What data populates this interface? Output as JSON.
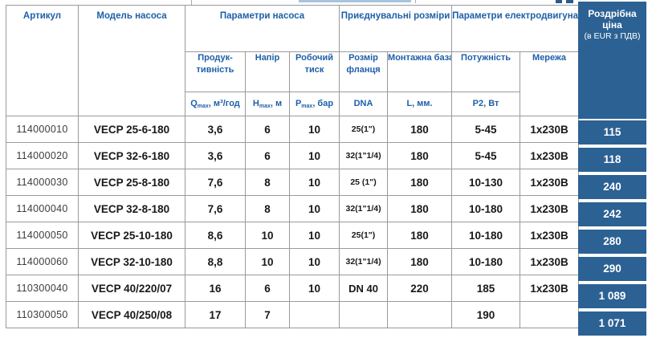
{
  "colors": {
    "header_text": "#1e5fa9",
    "price_bg": "#2c6193",
    "border": "#9a9a9a",
    "strip": "#a8c4dd"
  },
  "header": {
    "artikul": "Артикул",
    "model": "Модель насоса",
    "group_pump": "Параметри насоса",
    "group_connect": "Приєднувальні розміри",
    "group_motor": "Параметри електродвигуна",
    "price_line1": "Роздрібна ціна",
    "price_line2": "(в EUR з ПДВ)",
    "sub": {
      "productivity_l1": "Продук-",
      "productivity_l2": "тивність",
      "head": "Напір",
      "pressure_l1": "Робочий",
      "pressure_l2": "тиск",
      "flange_l1": "Розмір",
      "flange_l2": "фланця",
      "base": "Монтажна база",
      "power": "Потужність",
      "network": "Мережа"
    },
    "units": {
      "q_base": "Q",
      "q_sub": "max",
      "q_rest": ", м³/год",
      "h_base": "H",
      "h_sub": "max",
      "h_rest": ", м",
      "p_base": "P",
      "p_sub": "max",
      "p_rest": ", бар",
      "dna": "DNA",
      "l": "L, мм.",
      "p2": "P2, Вт"
    }
  },
  "rows": [
    {
      "artikul": "114000010",
      "model": "VECP 25-6-180",
      "q": "3,6",
      "h": "6",
      "p": "10",
      "dna": "25(1\")",
      "base": "180",
      "power": "5-45",
      "net": "1x230В",
      "price": "115"
    },
    {
      "artikul": "114000020",
      "model": "VECP 32-6-180",
      "q": "3,6",
      "h": "6",
      "p": "10",
      "dna": "32(1\"1/4)",
      "base": "180",
      "power": "5-45",
      "net": "1x230В",
      "price": "118"
    },
    {
      "artikul": "114000030",
      "model": "VECP 25-8-180",
      "q": "7,6",
      "h": "8",
      "p": "10",
      "dna": "25 (1\")",
      "base": "180",
      "power": "10-130",
      "net": "1x230В",
      "price": "240"
    },
    {
      "artikul": "114000040",
      "model": "VECP 32-8-180",
      "q": "7,6",
      "h": "8",
      "p": "10",
      "dna": "32(1\"1/4)",
      "base": "180",
      "power": "10-180",
      "net": "1x230В",
      "price": "242"
    },
    {
      "artikul": "114000050",
      "model": "VECP 25-10-180",
      "q": "8,6",
      "h": "10",
      "p": "10",
      "dna": "25(1\")",
      "base": "180",
      "power": "10-180",
      "net": "1x230В",
      "price": "280"
    },
    {
      "artikul": "114000060",
      "model": "VECP 32-10-180",
      "q": "8,8",
      "h": "10",
      "p": "10",
      "dna": "32(1\"1/4)",
      "base": "180",
      "power": "10-180",
      "net": "1x230В",
      "price": "290"
    },
    {
      "artikul": "110300040",
      "model": "VECP 40/220/07",
      "q": "16",
      "h": "6",
      "p": "10",
      "dna": "DN 40",
      "base": "220",
      "power": "185",
      "net": "1x230В",
      "price": "1 089"
    },
    {
      "artikul": "110300050",
      "model": "VECP 40/250/08",
      "q": "17",
      "h": "7",
      "p": "",
      "dna": "",
      "base": "",
      "power": "190",
      "net": "",
      "price": "1 071"
    }
  ]
}
